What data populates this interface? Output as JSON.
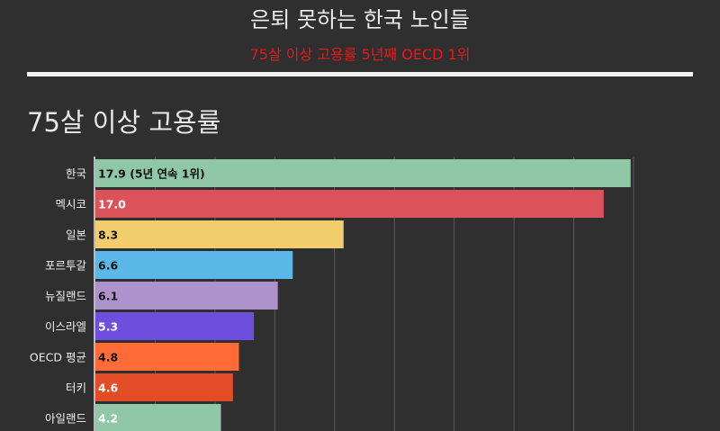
{
  "header": {
    "title": "은퇴 못하는 한국 노인들",
    "subtitle": "75살 이상 고용률 5년째 OECD 1위"
  },
  "colors": {
    "background": "#2f2f2f",
    "subtitle": "#e81818",
    "bar_label_dark": "#111111",
    "bar_label_light": "#ffffff"
  },
  "chart_data": {
    "type": "bar",
    "orientation": "horizontal",
    "title": "75살 이상 고용률",
    "xlim": [
      0,
      18
    ],
    "grid": true,
    "categories": [
      "한국",
      "멕시코",
      "일본",
      "포르투갈",
      "뉴질랜드",
      "이스라엘",
      "OECD 평균",
      "터키",
      "아일랜드"
    ],
    "values": [
      17.9,
      17.0,
      8.3,
      6.6,
      6.1,
      5.3,
      4.8,
      4.6,
      4.2
    ],
    "labels": [
      "17.9 (5년 연속 1위)",
      "17.0",
      "8.3",
      "6.6",
      "6.1",
      "5.3",
      "4.8",
      "4.6",
      "4.2"
    ],
    "colors": [
      "#8fc7a7",
      "#dc525a",
      "#f2cd6e",
      "#5cb7e9",
      "#ad92cc",
      "#6e4fdd",
      "#ff6b36",
      "#e24d27",
      "#8fc7a7"
    ],
    "label_colors": [
      "#111111",
      "#ffffff",
      "#111111",
      "#111111",
      "#111111",
      "#ffffff",
      "#111111",
      "#ffffff",
      "#ffffff"
    ]
  }
}
